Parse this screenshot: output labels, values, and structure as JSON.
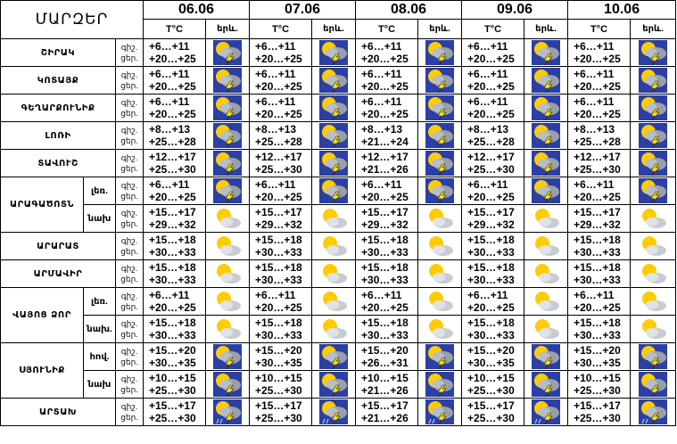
{
  "header": {
    "region_title": "ՄԱՐԶԵՐ",
    "dates": [
      "06.06",
      "07.06",
      "08.06",
      "09.06",
      "10.06"
    ],
    "temp_label": "T°C",
    "weather_label": "երև."
  },
  "labels": {
    "night": "գիշ.",
    "day": "ցեր."
  },
  "icon_names": {
    "storm": "sun-cloud-lightning-icon",
    "storm_b": "sun-cloud-lightning-icon",
    "partly": "sun-behind-cloud-icon"
  },
  "colors": {
    "storm_bg": "#2b3fa6",
    "sun": "#ffcc00",
    "cloud": "#9aa0a8",
    "bolt": "#ffe600"
  },
  "rows": [
    {
      "region": "ՇԻՐԱԿ",
      "sub": "",
      "cells": [
        {
          "night": "+6…+11",
          "day": "+20…+25",
          "icon": "storm"
        },
        {
          "night": "+6…+11",
          "day": "+20…+25",
          "icon": "storm"
        },
        {
          "night": "+6…+11",
          "day": "+20…+25",
          "icon": "storm"
        },
        {
          "night": "+6…+11",
          "day": "+20…+25",
          "icon": "storm"
        },
        {
          "night": "+6…+11",
          "day": "+20…+25",
          "icon": "storm"
        }
      ]
    },
    {
      "region": "ԿՈՏԱՅՔ",
      "sub": "",
      "cells": [
        {
          "night": "+6…+11",
          "day": "+20…+25",
          "icon": "storm"
        },
        {
          "night": "+6…+11",
          "day": "+20…+25",
          "icon": "storm"
        },
        {
          "night": "+6…+11",
          "day": "+20…+25",
          "icon": "storm"
        },
        {
          "night": "+6…+11",
          "day": "+20…+25",
          "icon": "storm"
        },
        {
          "night": "+6…+11",
          "day": "+20…+25",
          "icon": "storm"
        }
      ]
    },
    {
      "region": "ԳԵՂԱՐՔՈՒՆԻՔ",
      "sub": "",
      "cells": [
        {
          "night": "+6…+11",
          "day": "+20…+25",
          "icon": "storm"
        },
        {
          "night": "+6…+11",
          "day": "+20…+25",
          "icon": "storm"
        },
        {
          "night": "+6…+11",
          "day": "+20…+25",
          "icon": "storm"
        },
        {
          "night": "+6…+11",
          "day": "+20…+25",
          "icon": "storm"
        },
        {
          "night": "+6…+11",
          "day": "+20…+25",
          "icon": "storm"
        }
      ]
    },
    {
      "region": "ԼՈՌԻ",
      "sub": "",
      "cells": [
        {
          "night": "+8…+13",
          "day": "+25…+28",
          "icon": "storm"
        },
        {
          "night": "+8…+13",
          "day": "+25…+28",
          "icon": "storm"
        },
        {
          "night": "+8…+13",
          "day": "+21…+24",
          "icon": "storm"
        },
        {
          "night": "+8…+13",
          "day": "+25…+28",
          "icon": "storm"
        },
        {
          "night": "+8…+13",
          "day": "+25…+28",
          "icon": "storm"
        }
      ]
    },
    {
      "region": "ՏԱՎՈՒՇ",
      "sub": "",
      "cells": [
        {
          "night": "+12…+17",
          "day": "+25…+30",
          "icon": "storm"
        },
        {
          "night": "+12…+17",
          "day": "+25…+30",
          "icon": "storm"
        },
        {
          "night": "+12…+17",
          "day": "+21…+26",
          "icon": "storm"
        },
        {
          "night": "+12…+17",
          "day": "+25…+30",
          "icon": "storm"
        },
        {
          "night": "+12…+17",
          "day": "+25…+30",
          "icon": "storm"
        }
      ]
    },
    {
      "region": "ԱՐԱԳԱԾՈՏՆ",
      "sub": "լեռ.",
      "cells": [
        {
          "night": "+6…+11",
          "day": "+20…+25",
          "icon": "storm"
        },
        {
          "night": "+6…+11",
          "day": "+20…+25",
          "icon": "storm"
        },
        {
          "night": "+6…+11",
          "day": "+20…+25",
          "icon": "storm"
        },
        {
          "night": "+6…+11",
          "day": "+20…+25",
          "icon": "storm"
        },
        {
          "night": "+6…+11",
          "day": "+20…+25",
          "icon": "storm"
        }
      ]
    },
    {
      "region": "",
      "sub": "նախ",
      "cells": [
        {
          "night": "+15…+17",
          "day": "+29…+32",
          "icon": "partly"
        },
        {
          "night": "+15…+17",
          "day": "+29…+32",
          "icon": "partly"
        },
        {
          "night": "+15…+17",
          "day": "+29…+32",
          "icon": "partly"
        },
        {
          "night": "+15…+17",
          "day": "+29…+32",
          "icon": "partly"
        },
        {
          "night": "+15…+17",
          "day": "+29…+32",
          "icon": "partly"
        }
      ]
    },
    {
      "region": "ԱՐԱՐԱՏ",
      "sub": "",
      "cells": [
        {
          "night": "+15…+18",
          "day": "+30…+33",
          "icon": "partly"
        },
        {
          "night": "+15…+18",
          "day": "+30…+33",
          "icon": "partly"
        },
        {
          "night": "+15…+18",
          "day": "+30…+33",
          "icon": "partly"
        },
        {
          "night": "+15…+18",
          "day": "+30…+33",
          "icon": "partly"
        },
        {
          "night": "+15…+18",
          "day": "+30…+33",
          "icon": "partly"
        }
      ]
    },
    {
      "region": "ԱՐՄԱՎԻՐ",
      "sub": "",
      "cells": [
        {
          "night": "+15…+18",
          "day": "+30…+33",
          "icon": "partly"
        },
        {
          "night": "+15…+18",
          "day": "+30…+33",
          "icon": "partly"
        },
        {
          "night": "+15…+18",
          "day": "+30…+33",
          "icon": "partly"
        },
        {
          "night": "+15…+18",
          "day": "+30…+33",
          "icon": "partly"
        },
        {
          "night": "+15…+18",
          "day": "+30…+33",
          "icon": "partly"
        }
      ]
    },
    {
      "region": "ՎԱՅՈՑ ՁՈՐ",
      "sub": "լեռ.",
      "cells": [
        {
          "night": "+6…+11",
          "day": "+20…+25",
          "icon": "partly"
        },
        {
          "night": "+6…+11",
          "day": "+20…+25",
          "icon": "partly"
        },
        {
          "night": "+6…+11",
          "day": "+20…+25",
          "icon": "partly"
        },
        {
          "night": "+6…+11",
          "day": "+20…+25",
          "icon": "partly"
        },
        {
          "night": "+6…+11",
          "day": "+20…+25",
          "icon": "partly"
        }
      ]
    },
    {
      "region": "",
      "sub": "նախ.",
      "cells": [
        {
          "night": "+15…+18",
          "day": "+30…+33",
          "icon": "partly"
        },
        {
          "night": "+15…+18",
          "day": "+30…+33",
          "icon": "partly"
        },
        {
          "night": "+15…+18",
          "day": "+30…+33",
          "icon": "partly"
        },
        {
          "night": "+15…+18",
          "day": "+30…+33",
          "icon": "partly"
        },
        {
          "night": "+15…+18",
          "day": "+30…+33",
          "icon": "partly"
        }
      ]
    },
    {
      "region": "ՍՅՈՒՆԻՔ",
      "sub": "հով.",
      "cells": [
        {
          "night": "+15…+20",
          "day": "+30…+35",
          "icon": "storm"
        },
        {
          "night": "+15…+20",
          "day": "+30…+35",
          "icon": "storm"
        },
        {
          "night": "+15…+20",
          "day": "+26…+31",
          "icon": "storm"
        },
        {
          "night": "+15…+20",
          "day": "+30…+35",
          "icon": "storm"
        },
        {
          "night": "+15…+20",
          "day": "+30…+35",
          "icon": "storm"
        }
      ]
    },
    {
      "region": "",
      "sub": "նախ",
      "cells": [
        {
          "night": "+10…+15",
          "day": "+25…+30",
          "icon": "storm"
        },
        {
          "night": "+10…+15",
          "day": "+25…+30",
          "icon": "storm"
        },
        {
          "night": "+10…+15",
          "day": "+21…+26",
          "icon": "storm"
        },
        {
          "night": "+10…+15",
          "day": "+25…+30",
          "icon": "storm"
        },
        {
          "night": "+10…+15",
          "day": "+25…+30",
          "icon": "storm"
        }
      ]
    },
    {
      "region": "ԱՐՏԱԽ",
      "sub": "",
      "cells": [
        {
          "night": "+15…+17",
          "day": "+25…+30",
          "icon": "storm_b"
        },
        {
          "night": "+15…+17",
          "day": "+25…+30",
          "icon": "storm_b"
        },
        {
          "night": "+15…+17",
          "day": "+21…+26",
          "icon": "storm_b"
        },
        {
          "night": "+15…+17",
          "day": "+25…+30",
          "icon": "storm_b"
        },
        {
          "night": "+15…+17",
          "day": "+25…+30",
          "icon": "storm_b"
        }
      ]
    }
  ]
}
